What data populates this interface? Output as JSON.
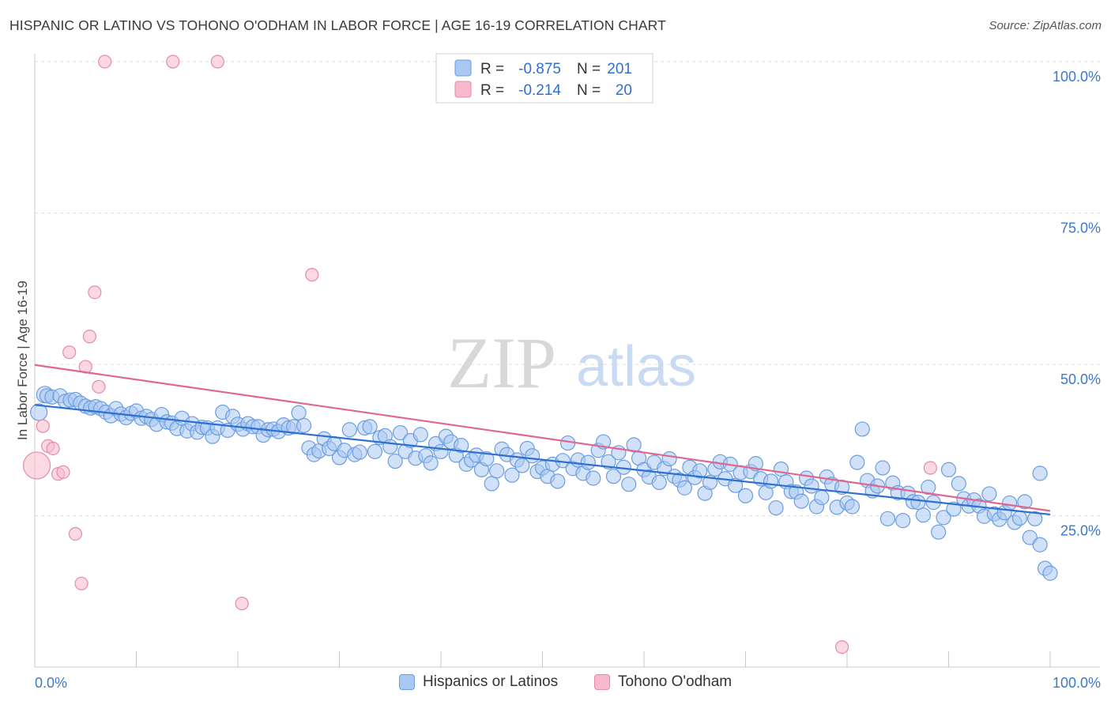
{
  "title": "HISPANIC OR LATINO VS TOHONO O'ODHAM IN LABOR FORCE | AGE 16-19 CORRELATION CHART",
  "source": "Source: ZipAtlas.com",
  "watermark": {
    "zip": "ZIP",
    "atlas": "atlas"
  },
  "legend_top": [
    {
      "r_label": "R =",
      "r_value": "-0.875",
      "n_label": "N =",
      "n_value": "201"
    },
    {
      "r_label": "R =",
      "r_value": "-0.214",
      "n_label": "N =",
      "n_value": "20"
    }
  ],
  "legend_bottom": [
    "Hispanics or Latinos",
    "Tohono O'odham"
  ],
  "colors": {
    "blue_fill": "#a9c8f2",
    "blue_stroke": "#6b9de0",
    "blue_line": "#2f6fd0",
    "pink_fill": "#f7b9cc",
    "pink_stroke": "#e889a8",
    "pink_line": "#e06690",
    "tick_label": "#3d78c9",
    "grid": "#dddddd"
  },
  "chart_data": {
    "type": "scatter",
    "title": "HISPANIC OR LATINO VS TOHONO O'ODHAM IN LABOR FORCE | AGE 16-19 CORRELATION CHART",
    "xlabel": "",
    "ylabel": "In Labor Force | Age 16-19",
    "xlim": [
      0,
      100
    ],
    "ylim": [
      0,
      100
    ],
    "x_tick_labels": [
      {
        "value": 0,
        "label": "0.0%"
      },
      {
        "value": 100,
        "label": "100.0%"
      }
    ],
    "y_tick_labels": [
      {
        "value": 100,
        "label": "100.0%"
      },
      {
        "value": 75,
        "label": "75.0%"
      },
      {
        "value": 50,
        "label": "50.0%"
      },
      {
        "value": 25,
        "label": "25.0%"
      }
    ],
    "grid": true,
    "legend_placement": "top-center",
    "series": [
      {
        "name": "Hispanics or Latinos",
        "color": "#a9c8f2",
        "trend": {
          "x": [
            0,
            100
          ],
          "y": [
            43.3,
            25.2
          ]
        },
        "points": [
          [
            0.4,
            42.1
          ],
          [
            1.0,
            45.0
          ],
          [
            1.2,
            44.8
          ],
          [
            1.7,
            44.6
          ],
          [
            2.5,
            44.8
          ],
          [
            3.0,
            43.9
          ],
          [
            3.5,
            44.1
          ],
          [
            4.0,
            44.2
          ],
          [
            4.5,
            43.6
          ],
          [
            5.0,
            43.1
          ],
          [
            5.5,
            42.8
          ],
          [
            6.0,
            43.0
          ],
          [
            6.5,
            42.7
          ],
          [
            7.0,
            42.1
          ],
          [
            7.5,
            41.5
          ],
          [
            8.0,
            42.7
          ],
          [
            8.5,
            41.8
          ],
          [
            9.0,
            41.2
          ],
          [
            9.5,
            41.9
          ],
          [
            10.0,
            42.3
          ],
          [
            10.5,
            41.1
          ],
          [
            11.0,
            41.4
          ],
          [
            11.5,
            40.9
          ],
          [
            12.0,
            40.1
          ],
          [
            12.5,
            41.7
          ],
          [
            13.0,
            40.5
          ],
          [
            13.5,
            40.3
          ],
          [
            14.0,
            39.4
          ],
          [
            14.5,
            41.1
          ],
          [
            15.0,
            39.0
          ],
          [
            15.5,
            40.2
          ],
          [
            16.0,
            38.8
          ],
          [
            16.5,
            39.6
          ],
          [
            17.0,
            39.5
          ],
          [
            17.5,
            38.1
          ],
          [
            18.0,
            39.5
          ],
          [
            18.5,
            42.1
          ],
          [
            19.0,
            39.1
          ],
          [
            19.5,
            41.4
          ],
          [
            20.0,
            40.1
          ],
          [
            20.5,
            39.3
          ],
          [
            21.0,
            40.2
          ],
          [
            21.5,
            39.7
          ],
          [
            22.0,
            39.7
          ],
          [
            22.5,
            38.3
          ],
          [
            23.0,
            39.2
          ],
          [
            23.5,
            39.3
          ],
          [
            24.0,
            38.9
          ],
          [
            24.5,
            40.0
          ],
          [
            25.0,
            39.5
          ],
          [
            25.5,
            39.7
          ],
          [
            26.0,
            42.0
          ],
          [
            26.5,
            39.9
          ],
          [
            27.0,
            36.2
          ],
          [
            27.5,
            35.1
          ],
          [
            28.0,
            35.7
          ],
          [
            28.5,
            37.7
          ],
          [
            29.0,
            36.1
          ],
          [
            29.5,
            36.9
          ],
          [
            30.0,
            34.6
          ],
          [
            30.5,
            35.8
          ],
          [
            31.0,
            39.2
          ],
          [
            31.5,
            35.1
          ],
          [
            32.0,
            35.5
          ],
          [
            32.5,
            39.5
          ],
          [
            33.0,
            39.7
          ],
          [
            33.5,
            35.6
          ],
          [
            34.0,
            37.9
          ],
          [
            34.5,
            38.2
          ],
          [
            35.0,
            36.4
          ],
          [
            35.5,
            34.0
          ],
          [
            36.0,
            38.7
          ],
          [
            36.5,
            35.6
          ],
          [
            37.0,
            37.4
          ],
          [
            37.5,
            34.5
          ],
          [
            38.0,
            38.4
          ],
          [
            38.5,
            34.9
          ],
          [
            39.0,
            33.7
          ],
          [
            39.5,
            36.9
          ],
          [
            40.0,
            35.6
          ],
          [
            40.5,
            38.1
          ],
          [
            41.0,
            37.2
          ],
          [
            41.5,
            35.0
          ],
          [
            42.0,
            36.6
          ],
          [
            42.5,
            33.5
          ],
          [
            43.0,
            34.2
          ],
          [
            43.5,
            35.0
          ],
          [
            44.0,
            32.6
          ],
          [
            44.5,
            34.4
          ],
          [
            45.0,
            30.3
          ],
          [
            45.5,
            32.4
          ],
          [
            46.0,
            36.0
          ],
          [
            46.5,
            35.1
          ],
          [
            47.0,
            31.7
          ],
          [
            47.5,
            34.2
          ],
          [
            48.0,
            33.3
          ],
          [
            48.5,
            36.1
          ],
          [
            49.0,
            34.9
          ],
          [
            49.5,
            32.3
          ],
          [
            50.0,
            32.9
          ],
          [
            50.5,
            31.5
          ],
          [
            51.0,
            33.5
          ],
          [
            51.5,
            30.7
          ],
          [
            52.0,
            34.1
          ],
          [
            52.5,
            37.0
          ],
          [
            53.0,
            32.8
          ],
          [
            53.5,
            34.2
          ],
          [
            54.0,
            32.0
          ],
          [
            54.5,
            33.8
          ],
          [
            55.0,
            31.2
          ],
          [
            55.5,
            35.8
          ],
          [
            56.0,
            37.2
          ],
          [
            56.5,
            33.9
          ],
          [
            57.0,
            31.5
          ],
          [
            57.5,
            35.4
          ],
          [
            58.0,
            33.0
          ],
          [
            58.5,
            30.2
          ],
          [
            59.0,
            36.7
          ],
          [
            59.5,
            34.5
          ],
          [
            60.0,
            32.6
          ],
          [
            60.5,
            31.4
          ],
          [
            61.0,
            33.8
          ],
          [
            61.5,
            30.5
          ],
          [
            62.0,
            32.8
          ],
          [
            62.5,
            34.4
          ],
          [
            63.0,
            31.5
          ],
          [
            63.5,
            30.9
          ],
          [
            64.0,
            29.6
          ],
          [
            64.5,
            33.0
          ],
          [
            65.0,
            31.3
          ],
          [
            65.5,
            32.4
          ],
          [
            66.0,
            28.7
          ],
          [
            66.5,
            30.5
          ],
          [
            67.0,
            32.7
          ],
          [
            67.5,
            33.9
          ],
          [
            68.0,
            31.1
          ],
          [
            68.5,
            33.5
          ],
          [
            69.0,
            30.0
          ],
          [
            69.5,
            32.1
          ],
          [
            70.0,
            28.3
          ],
          [
            70.5,
            32.3
          ],
          [
            71.0,
            33.6
          ],
          [
            71.5,
            31.1
          ],
          [
            72.0,
            28.8
          ],
          [
            72.5,
            30.7
          ],
          [
            73.0,
            26.3
          ],
          [
            73.5,
            32.7
          ],
          [
            74.0,
            30.6
          ],
          [
            74.5,
            29.0
          ],
          [
            75.0,
            28.9
          ],
          [
            75.5,
            27.4
          ],
          [
            76.0,
            31.2
          ],
          [
            76.5,
            29.9
          ],
          [
            77.0,
            26.5
          ],
          [
            77.5,
            28.0
          ],
          [
            78.0,
            31.4
          ],
          [
            78.5,
            30.2
          ],
          [
            79.0,
            26.4
          ],
          [
            79.5,
            29.7
          ],
          [
            80.0,
            27.1
          ],
          [
            80.5,
            26.5
          ],
          [
            81.0,
            33.8
          ],
          [
            81.5,
            39.3
          ],
          [
            82.0,
            30.8
          ],
          [
            82.5,
            29.1
          ],
          [
            83.0,
            29.9
          ],
          [
            83.5,
            32.9
          ],
          [
            84.0,
            24.5
          ],
          [
            84.5,
            30.4
          ],
          [
            85.0,
            28.8
          ],
          [
            85.5,
            24.2
          ],
          [
            86.0,
            28.7
          ],
          [
            86.5,
            27.3
          ],
          [
            87.0,
            27.2
          ],
          [
            87.5,
            25.1
          ],
          [
            88.0,
            29.7
          ],
          [
            88.5,
            27.2
          ],
          [
            89.0,
            22.3
          ],
          [
            89.5,
            24.7
          ],
          [
            90.0,
            32.6
          ],
          [
            90.5,
            26.1
          ],
          [
            91.0,
            30.3
          ],
          [
            91.5,
            27.8
          ],
          [
            92.0,
            26.6
          ],
          [
            92.5,
            27.6
          ],
          [
            93.0,
            26.6
          ],
          [
            93.5,
            24.9
          ],
          [
            94.0,
            28.6
          ],
          [
            94.5,
            25.3
          ],
          [
            95.0,
            24.4
          ],
          [
            95.5,
            25.5
          ],
          [
            96.0,
            27.1
          ],
          [
            96.5,
            23.9
          ],
          [
            97.0,
            24.6
          ],
          [
            97.5,
            27.3
          ],
          [
            98.0,
            21.4
          ],
          [
            98.5,
            24.5
          ],
          [
            99.0,
            20.2
          ],
          [
            99.5,
            16.3
          ],
          [
            100.0,
            15.5
          ],
          [
            99.0,
            32.0
          ]
        ]
      },
      {
        "name": "Tohono O'odham",
        "color": "#f7b9cc",
        "trend": {
          "x": [
            0,
            100
          ],
          "y": [
            49.9,
            25.8
          ]
        },
        "points": [
          [
            0.2,
            33.3
          ],
          [
            0.8,
            39.8
          ],
          [
            1.3,
            36.5
          ],
          [
            1.8,
            36.1
          ],
          [
            2.3,
            31.9
          ],
          [
            2.8,
            32.2
          ],
          [
            3.4,
            52.0
          ],
          [
            4.0,
            22.0
          ],
          [
            4.6,
            13.8
          ],
          [
            5.0,
            49.6
          ],
          [
            5.4,
            54.6
          ],
          [
            5.9,
            61.9
          ],
          [
            6.3,
            46.3
          ],
          [
            6.9,
            100.0
          ],
          [
            13.6,
            100.0
          ],
          [
            18.0,
            100.0
          ],
          [
            20.4,
            10.5
          ],
          [
            27.3,
            64.8
          ],
          [
            79.5,
            3.3
          ],
          [
            88.2,
            32.9
          ]
        ]
      }
    ]
  }
}
